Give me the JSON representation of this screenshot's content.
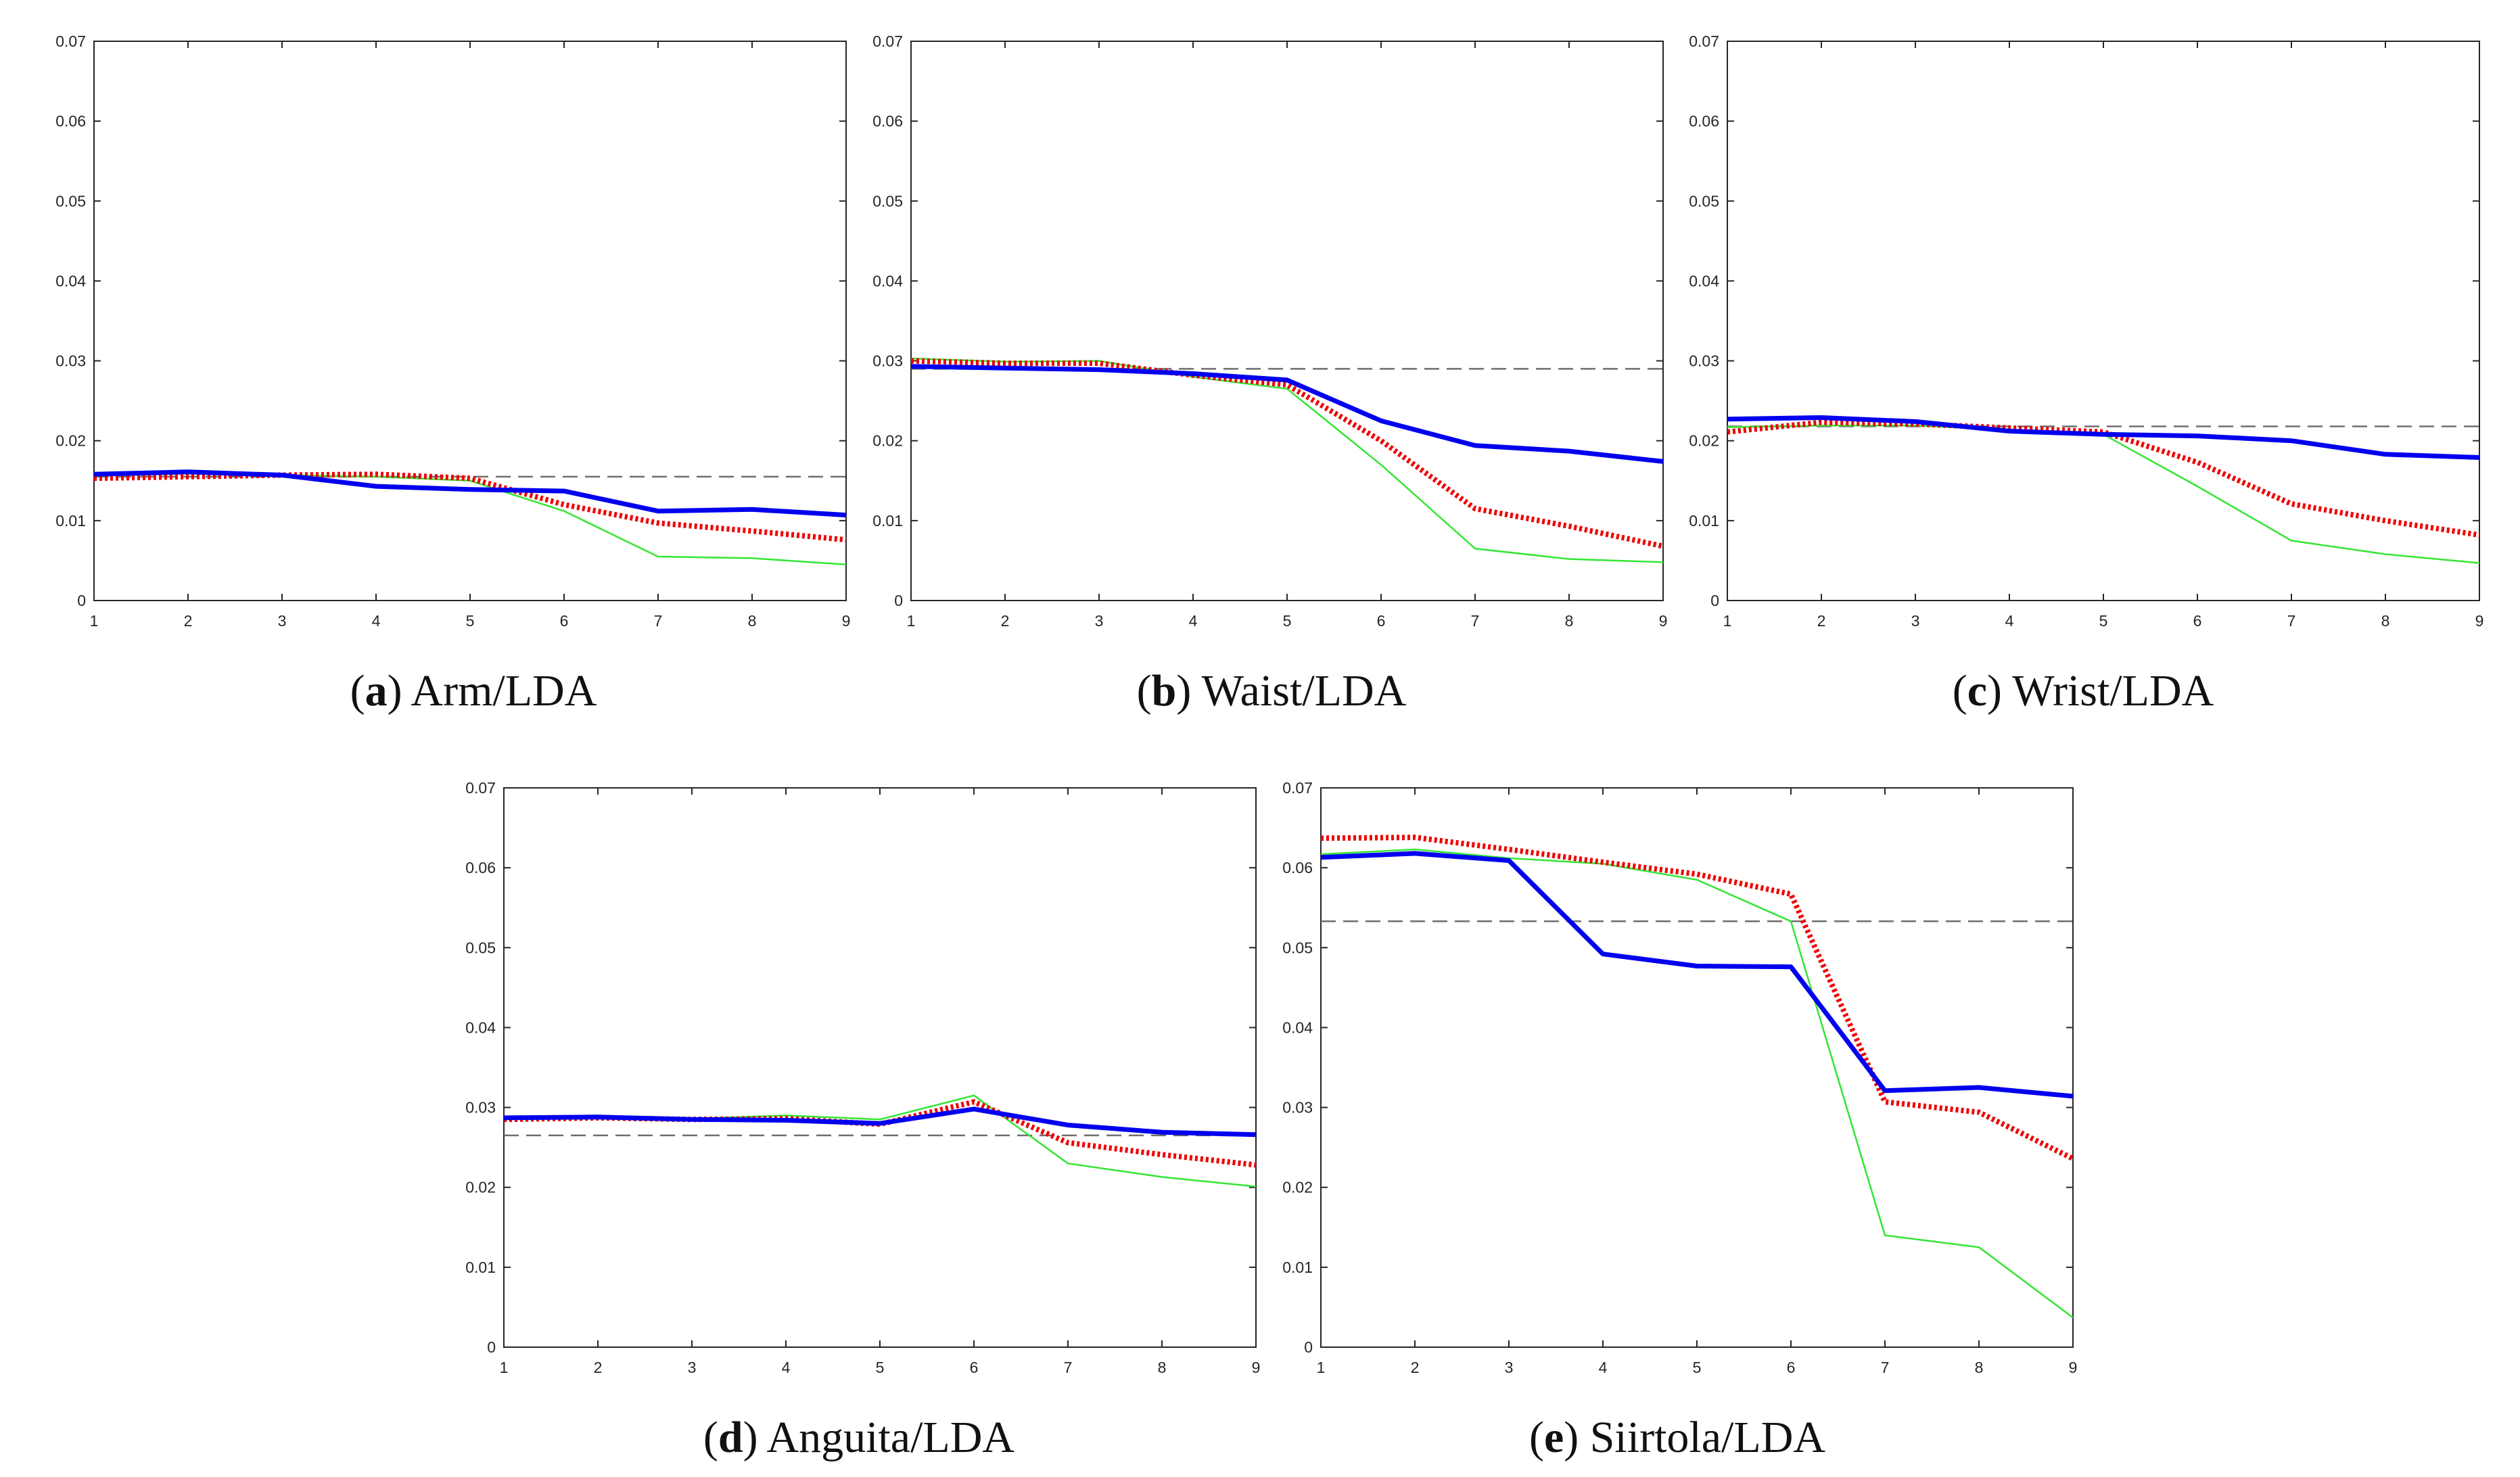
{
  "colors": {
    "blue": "#0000ee",
    "red": "#ee0000",
    "green": "#33e633",
    "baseline": "#6e6e6e",
    "axis": "#262626"
  },
  "chart_data": [
    {
      "type": "line",
      "caption_letter": "a",
      "caption_text": "Arm/LDA",
      "x": [
        1,
        2,
        3,
        4,
        5,
        6,
        7,
        8,
        9
      ],
      "xticks": [
        "1",
        "2",
        "3",
        "4",
        "5",
        "6",
        "7",
        "8",
        "9"
      ],
      "yticks": [
        "0",
        "0.01",
        "0.02",
        "0.03",
        "0.04",
        "0.05",
        "0.06",
        "0.07"
      ],
      "xlim": [
        1,
        9
      ],
      "ylim": [
        0,
        0.07
      ],
      "baseline": 0.0155,
      "series": [
        {
          "name": "blue",
          "values": [
            0.0158,
            0.0161,
            0.0157,
            0.0143,
            0.0139,
            0.0137,
            0.0112,
            0.0114,
            0.0107
          ]
        },
        {
          "name": "red",
          "values": [
            0.0153,
            0.0155,
            0.0157,
            0.0158,
            0.0153,
            0.012,
            0.0097,
            0.0087,
            0.0076
          ]
        },
        {
          "name": "green",
          "values": [
            0.0156,
            0.0159,
            0.0157,
            0.0155,
            0.015,
            0.0112,
            0.0055,
            0.0053,
            0.0045
          ]
        }
      ]
    },
    {
      "type": "line",
      "caption_letter": "b",
      "caption_text": "Waist/LDA",
      "x": [
        1,
        2,
        3,
        4,
        5,
        6,
        7,
        8,
        9
      ],
      "xticks": [
        "1",
        "2",
        "3",
        "4",
        "5",
        "6",
        "7",
        "8",
        "9"
      ],
      "yticks": [
        "0",
        "0.01",
        "0.02",
        "0.03",
        "0.04",
        "0.05",
        "0.06",
        "0.07"
      ],
      "xlim": [
        1,
        9
      ],
      "ylim": [
        0,
        0.07
      ],
      "baseline": 0.029,
      "series": [
        {
          "name": "blue",
          "values": [
            0.0293,
            0.0291,
            0.0289,
            0.0284,
            0.0276,
            0.0225,
            0.0194,
            0.0187,
            0.0174
          ]
        },
        {
          "name": "red",
          "values": [
            0.03,
            0.0297,
            0.0297,
            0.0282,
            0.027,
            0.02,
            0.0115,
            0.0093,
            0.0068
          ]
        },
        {
          "name": "green",
          "values": [
            0.0303,
            0.0299,
            0.03,
            0.028,
            0.0265,
            0.017,
            0.0065,
            0.0052,
            0.0048
          ]
        }
      ]
    },
    {
      "type": "line",
      "caption_letter": "c",
      "caption_text": "Wrist/LDA",
      "x": [
        1,
        2,
        3,
        4,
        5,
        6,
        7,
        8,
        9
      ],
      "xticks": [
        "1",
        "2",
        "3",
        "4",
        "5",
        "6",
        "7",
        "8",
        "9"
      ],
      "yticks": [
        "0",
        "0.01",
        "0.02",
        "0.03",
        "0.04",
        "0.05",
        "0.06",
        "0.07"
      ],
      "xlim": [
        1,
        9
      ],
      "ylim": [
        0,
        0.07
      ],
      "baseline": 0.0218,
      "series": [
        {
          "name": "blue",
          "values": [
            0.0227,
            0.0229,
            0.0224,
            0.0212,
            0.0208,
            0.0206,
            0.02,
            0.0183,
            0.0179
          ]
        },
        {
          "name": "red",
          "values": [
            0.0211,
            0.0223,
            0.0221,
            0.0216,
            0.0211,
            0.0173,
            0.0121,
            0.01,
            0.0082
          ]
        },
        {
          "name": "green",
          "values": [
            0.0217,
            0.0219,
            0.0219,
            0.0214,
            0.0208,
            0.0143,
            0.0075,
            0.0058,
            0.0047
          ]
        }
      ]
    },
    {
      "type": "line",
      "caption_letter": "d",
      "caption_text": "Anguita/LDA",
      "x": [
        1,
        2,
        3,
        4,
        5,
        6,
        7,
        8,
        9
      ],
      "xticks": [
        "1",
        "2",
        "3",
        "4",
        "5",
        "6",
        "7",
        "8",
        "9"
      ],
      "yticks": [
        "0",
        "0.01",
        "0.02",
        "0.03",
        "0.04",
        "0.05",
        "0.06",
        "0.07"
      ],
      "xlim": [
        1,
        9
      ],
      "ylim": [
        0,
        0.07
      ],
      "baseline": 0.0265,
      "series": [
        {
          "name": "blue",
          "values": [
            0.0287,
            0.0288,
            0.0285,
            0.0284,
            0.028,
            0.0298,
            0.0278,
            0.0269,
            0.0266
          ]
        },
        {
          "name": "red",
          "values": [
            0.0285,
            0.0287,
            0.0285,
            0.0286,
            0.0279,
            0.0307,
            0.0256,
            0.0241,
            0.0228
          ]
        },
        {
          "name": "green",
          "values": [
            0.0288,
            0.029,
            0.0286,
            0.029,
            0.0285,
            0.0315,
            0.023,
            0.0213,
            0.0201
          ]
        }
      ]
    },
    {
      "type": "line",
      "caption_letter": "e",
      "caption_text": "Siirtola/LDA",
      "x": [
        1,
        2,
        3,
        4,
        5,
        6,
        7,
        8,
        9
      ],
      "xticks": [
        "1",
        "2",
        "3",
        "4",
        "5",
        "6",
        "7",
        "8",
        "9"
      ],
      "yticks": [
        "0",
        "0.01",
        "0.02",
        "0.03",
        "0.04",
        "0.05",
        "0.06",
        "0.07"
      ],
      "xlim": [
        1,
        9
      ],
      "ylim": [
        0,
        0.07
      ],
      "baseline": 0.0533,
      "series": [
        {
          "name": "blue",
          "values": [
            0.0613,
            0.0618,
            0.0609,
            0.0492,
            0.0477,
            0.0476,
            0.0321,
            0.0325,
            0.0314
          ]
        },
        {
          "name": "red",
          "values": [
            0.0637,
            0.0638,
            0.0623,
            0.0607,
            0.0592,
            0.0567,
            0.0307,
            0.0294,
            0.0236
          ]
        },
        {
          "name": "green",
          "values": [
            0.0617,
            0.0623,
            0.0612,
            0.0605,
            0.0585,
            0.0533,
            0.014,
            0.0125,
            0.0037
          ]
        }
      ]
    }
  ]
}
